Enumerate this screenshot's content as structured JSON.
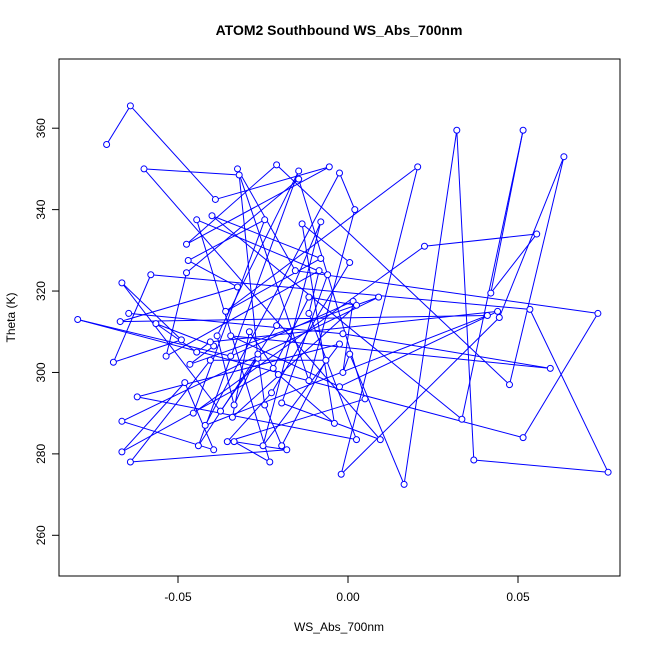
{
  "chart_data": {
    "type": "scatter",
    "title": "ATOM2 Southbound WS_Abs_700nm",
    "xlabel": "WS_Abs_700nm",
    "ylabel": "Theta (K)",
    "xlim": [
      -0.085,
      0.08
    ],
    "ylim": [
      250,
      377
    ],
    "xticks": [
      -0.05,
      0.0,
      0.05
    ],
    "xtick_labels": [
      "-0.05",
      "0.00",
      "0.05"
    ],
    "yticks": [
      260,
      280,
      300,
      320,
      340,
      360
    ],
    "yticks_labels": [
      "260",
      "280",
      "300",
      "320",
      "340",
      "360"
    ],
    "color": "#0000ff",
    "connected": true,
    "grid": false,
    "series": [
      {
        "x": [
          -0.071,
          -0.064,
          -0.039,
          -0.0055,
          -0.0475,
          -0.021,
          0.0475,
          0.0635,
          0.0445,
          -0.002,
          0.0205,
          -0.036,
          -0.008,
          -0.04,
          0.0335,
          0.0515,
          0.042,
          0.0555,
          0.0225,
          -0.0455,
          -0.0245,
          -0.047,
          -0.0325,
          -0.067,
          0.041,
          -0.042,
          -0.0025,
          0.002,
          -0.0115,
          -0.0325,
          -0.0155,
          0.0735,
          0.0515,
          -0.0795,
          -0.0345,
          0.0015,
          -0.0015,
          0.0005,
          0.0165,
          0.032,
          0.037,
          0.0765,
          0.0535,
          -0.058,
          -0.069,
          -0.049,
          -0.0665,
          -0.0375,
          -0.0265,
          -0.032,
          -0.06,
          0.0095,
          -0.0195,
          -0.006,
          -0.0445,
          -0.023,
          -0.0335,
          -0.018,
          -0.064,
          -0.0405,
          -0.0065,
          -0.0195,
          -0.0245,
          -0.0265,
          -0.0335,
          -0.0385,
          -0.0145,
          -0.044,
          -0.021,
          -0.008,
          -0.025,
          -0.0025,
          -0.062,
          0.0025,
          -0.0115,
          -0.0085,
          -0.0535,
          -0.0475,
          -0.0145,
          0.005,
          -0.0355,
          -0.0225,
          0.0005,
          -0.0135,
          -0.004,
          -0.0205,
          -0.029,
          -0.034,
          0.0025,
          -0.0115,
          -0.022,
          -0.0665,
          -0.048,
          -0.0395,
          -0.0665,
          0.009,
          -0.0465,
          -0.0395,
          -0.0565,
          -0.0445,
          -0.0405,
          0.044,
          -0.0025,
          -0.0345,
          0.0595,
          -0.0015,
          -0.0645
        ],
        "y": [
          356,
          365.5,
          342.5,
          350.5,
          331.5,
          351,
          297,
          353,
          313.5,
          275,
          350.5,
          315,
          328,
          338.5,
          288.5,
          359.5,
          319.5,
          334,
          331,
          290,
          337.5,
          327.5,
          321,
          312.5,
          314,
          287,
          349,
          340,
          298,
          350,
          325,
          314.5,
          284,
          313,
          304,
          317.5,
          300,
          304.5,
          272.5,
          359.5,
          278.5,
          275.5,
          315.5,
          324,
          302.5,
          308,
          322,
          290.5,
          303.5,
          348.5,
          350,
          283.5,
          292.5,
          324,
          337.5,
          278,
          283,
          281,
          278,
          303,
          303,
          282,
          292,
          304.5,
          292,
          309,
          349.5,
          282,
          311.5,
          337,
          282,
          307,
          294,
          283.5,
          314.5,
          325,
          304,
          324.5,
          347.5,
          293.5,
          283,
          295,
          327,
          336.5,
          287.5,
          299.5,
          310,
          289,
          316.5,
          318.5,
          301,
          280.5,
          297.5,
          281,
          288,
          318.5,
          302,
          306.5,
          312,
          305,
          307.5,
          315,
          296.5,
          309,
          301,
          309.5,
          314.5
        ]
      }
    ]
  }
}
